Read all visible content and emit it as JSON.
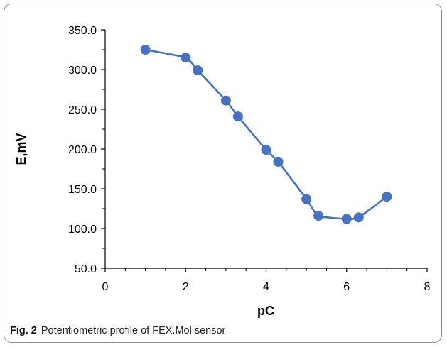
{
  "caption": {
    "label": "Fig. 2",
    "text": "Potentiometric profile of FEX.Mol sensor"
  },
  "chart_data": {
    "type": "line",
    "xlabel": "pC",
    "ylabel": "E,mV",
    "xlim": [
      0,
      8
    ],
    "ylim": [
      50,
      350
    ],
    "x_ticks": [
      0,
      2,
      4,
      6,
      8
    ],
    "y_ticks": [
      "50.0",
      "100.0",
      "150.0",
      "200.0",
      "250.0",
      "300.0",
      "350.0"
    ],
    "grid": false,
    "legend": "none",
    "line_color": "#4472c4",
    "marker": "circle",
    "series": [
      {
        "x": [
          1,
          2,
          2.3,
          3,
          3.3,
          4,
          4.3,
          5,
          5.3,
          6,
          6.3,
          7
        ],
        "y": [
          325,
          315,
          299,
          261,
          241,
          199,
          184,
          137,
          116,
          112,
          114,
          140
        ]
      }
    ]
  }
}
